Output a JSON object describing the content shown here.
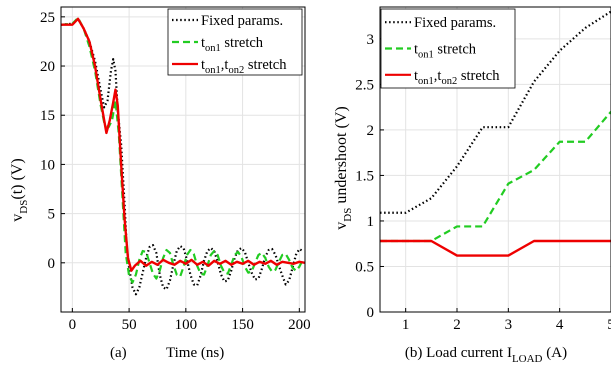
{
  "chart_data": [
    {
      "type": "line",
      "xlabel": "Time (ns)",
      "ylabel_main": "v",
      "ylabel_sub": "DS",
      "ylabel_rest": "(t) (V)",
      "xlim": [
        -10,
        205
      ],
      "ylim": [
        -5,
        26
      ],
      "xticks": [
        0,
        50,
        100,
        150,
        200
      ],
      "yticks": [
        0,
        5,
        10,
        15,
        20,
        25
      ],
      "grid": true,
      "legend_position": "top-right",
      "caption": "(a)",
      "series": [
        {
          "name": "Fixed params.",
          "color": "#000000",
          "dash": "dotted",
          "points": [
            [
              -10,
              24.2
            ],
            [
              0,
              24.3
            ],
            [
              5,
              24.8
            ],
            [
              10,
              23.8
            ],
            [
              15,
              22.5
            ],
            [
              20,
              20.5
            ],
            [
              25,
              17.5
            ],
            [
              28,
              15.8
            ],
            [
              31,
              16.5
            ],
            [
              34,
              19.5
            ],
            [
              36,
              20.7
            ],
            [
              38,
              19.5
            ],
            [
              40,
              15.5
            ],
            [
              43,
              12
            ],
            [
              46,
              6
            ],
            [
              48,
              1.5
            ],
            [
              50,
              -0.5
            ],
            [
              53,
              -2.5
            ],
            [
              56,
              -3.2
            ],
            [
              59,
              -2.5
            ],
            [
              62,
              -1
            ],
            [
              65,
              0.5
            ],
            [
              68,
              1.6
            ],
            [
              71,
              1.8
            ],
            [
              74,
              1
            ],
            [
              77,
              -1.2
            ],
            [
              80,
              -2.5
            ],
            [
              83,
              -2.7
            ],
            [
              86,
              -1.8
            ],
            [
              89,
              -0.2
            ],
            [
              92,
              1.2
            ],
            [
              95,
              1.7
            ],
            [
              98,
              1.5
            ],
            [
              101,
              0.3
            ],
            [
              104,
              -1.2
            ],
            [
              107,
              -2.2
            ],
            [
              110,
              -2.3
            ],
            [
              113,
              -1.3
            ],
            [
              116,
              0.2
            ],
            [
              119,
              1.2
            ],
            [
              122,
              1.5
            ],
            [
              125,
              1.2
            ],
            [
              128,
              0.1
            ],
            [
              131,
              -1.2
            ],
            [
              134,
              -1.9
            ],
            [
              137,
              -1.8
            ],
            [
              140,
              -0.8
            ],
            [
              143,
              0.5
            ],
            [
              146,
              1.3
            ],
            [
              149,
              1.5
            ],
            [
              152,
              1.1
            ],
            [
              155,
              0
            ],
            [
              158,
              -1
            ],
            [
              161,
              -1.7
            ],
            [
              164,
              -1.6
            ],
            [
              167,
              -0.6
            ],
            [
              170,
              0.6
            ],
            [
              173,
              1.3
            ],
            [
              176,
              1.4
            ],
            [
              179,
              0.8
            ],
            [
              182,
              -0.3
            ],
            [
              185,
              -1.3
            ],
            [
              188,
              -2.2
            ],
            [
              191,
              -1.8
            ],
            [
              194,
              -0.5
            ],
            [
              197,
              0.8
            ],
            [
              200,
              1.4
            ],
            [
              203,
              1.2
            ]
          ]
        },
        {
          "name": "ton1 stretch",
          "name_main": "t",
          "name_sub": "on1",
          "name_rest": " stretch",
          "color": "#22cc22",
          "dash": "dashed",
          "points": [
            [
              -10,
              24.2
            ],
            [
              0,
              24.3
            ],
            [
              5,
              24.9
            ],
            [
              10,
              23.8
            ],
            [
              15,
              22
            ],
            [
              20,
              19.5
            ],
            [
              25,
              16
            ],
            [
              28,
              14.3
            ],
            [
              32,
              13.8
            ],
            [
              35,
              14.5
            ],
            [
              38,
              16.5
            ],
            [
              41,
              13
            ],
            [
              44,
              7
            ],
            [
              47,
              1
            ],
            [
              50,
              -1.3
            ],
            [
              53,
              -2
            ],
            [
              56,
              -1.2
            ],
            [
              59,
              0.3
            ],
            [
              62,
              1.2
            ],
            [
              65,
              1.1
            ],
            [
              68,
              0
            ],
            [
              71,
              -1.1
            ],
            [
              74,
              -1.6
            ],
            [
              77,
              -0.8
            ],
            [
              80,
              0.5
            ],
            [
              83,
              1.3
            ],
            [
              86,
              1
            ],
            [
              89,
              -0.2
            ],
            [
              92,
              -1.2
            ],
            [
              95,
              -1.4
            ],
            [
              98,
              -0.4
            ],
            [
              101,
              0.8
            ],
            [
              104,
              1.3
            ],
            [
              107,
              0.9
            ],
            [
              110,
              -0.3
            ],
            [
              113,
              -1.1
            ],
            [
              116,
              -1.2
            ],
            [
              119,
              -0.3
            ],
            [
              122,
              0.8
            ],
            [
              125,
              1.2
            ],
            [
              128,
              0.8
            ],
            [
              131,
              -0.3
            ],
            [
              134,
              -1
            ],
            [
              137,
              -1.1
            ],
            [
              140,
              -0.2
            ],
            [
              143,
              0.8
            ],
            [
              146,
              1.1
            ],
            [
              149,
              0.6
            ],
            [
              152,
              -0.4
            ],
            [
              155,
              -1
            ],
            [
              158,
              -0.9
            ],
            [
              161,
              0
            ],
            [
              164,
              0.8
            ],
            [
              167,
              1
            ],
            [
              170,
              0.5
            ],
            [
              173,
              -0.4
            ],
            [
              176,
              -0.9
            ],
            [
              179,
              -0.7
            ],
            [
              182,
              0.1
            ],
            [
              185,
              0.8
            ],
            [
              188,
              0.9
            ],
            [
              191,
              0.3
            ],
            [
              194,
              -0.5
            ],
            [
              197,
              -0.8
            ],
            [
              200,
              -0.4
            ],
            [
              203,
              0.3
            ]
          ]
        },
        {
          "name": "ton1,ton2 stretch",
          "name_main": "t",
          "name_sub": "on1",
          "name_mid": ",t",
          "name_sub2": "on2",
          "name_rest": " stretch",
          "color": "#ee0000",
          "dash": "solid",
          "points": [
            [
              -10,
              24.2
            ],
            [
              0,
              24.2
            ],
            [
              5,
              24.8
            ],
            [
              10,
              23.8
            ],
            [
              15,
              22.5
            ],
            [
              20,
              20
            ],
            [
              25,
              16.5
            ],
            [
              30,
              13.2
            ],
            [
              33,
              14.5
            ],
            [
              36,
              16.3
            ],
            [
              38,
              17.6
            ],
            [
              40,
              16
            ],
            [
              43,
              10
            ],
            [
              46,
              4.5
            ],
            [
              49,
              0.5
            ],
            [
              52,
              -0.8
            ],
            [
              55,
              -0.3
            ],
            [
              60,
              0.2
            ],
            [
              65,
              -0.3
            ],
            [
              70,
              0.1
            ],
            [
              75,
              -0.2
            ],
            [
              80,
              0.3
            ],
            [
              85,
              0
            ],
            [
              90,
              -0.2
            ],
            [
              95,
              0.2
            ],
            [
              100,
              -0.1
            ],
            [
              105,
              0.3
            ],
            [
              110,
              -0.2
            ],
            [
              115,
              0.1
            ],
            [
              120,
              -0.3
            ],
            [
              125,
              0.2
            ],
            [
              130,
              -0.1
            ],
            [
              135,
              0.2
            ],
            [
              140,
              -0.2
            ],
            [
              145,
              0.1
            ],
            [
              150,
              -0.1
            ],
            [
              155,
              0.2
            ],
            [
              160,
              -0.2
            ],
            [
              165,
              0.1
            ],
            [
              170,
              -0.1
            ],
            [
              175,
              0.2
            ],
            [
              180,
              -0.2
            ],
            [
              185,
              0.1
            ],
            [
              190,
              0
            ],
            [
              195,
              -0.1
            ],
            [
              200,
              0.1
            ],
            [
              205,
              0
            ]
          ]
        }
      ]
    },
    {
      "type": "line",
      "xlabel": "(b) Load current I",
      "xlabel_sub": "LOAD",
      "xlabel_rest": " (A)",
      "ylabel_main": "v",
      "ylabel_sub": "DS",
      "ylabel_rest": " undershoot (V)",
      "xlim": [
        0.5,
        5
      ],
      "ylim": [
        0,
        3.35
      ],
      "xticks": [
        1,
        2,
        3,
        4,
        5
      ],
      "yticks": [
        0,
        0.5,
        1,
        1.5,
        2,
        2.5,
        3
      ],
      "ytick_labels": [
        "0",
        "0.5",
        "1",
        "1.5",
        "2",
        "2.5",
        "3"
      ],
      "grid": true,
      "legend_position": "top-left",
      "series": [
        {
          "name": "Fixed params.",
          "color": "#000000",
          "dash": "dotted",
          "points": [
            [
              0.5,
              1.09
            ],
            [
              1,
              1.09
            ],
            [
              1.5,
              1.25
            ],
            [
              2,
              1.6
            ],
            [
              2.5,
              2.03
            ],
            [
              3,
              2.03
            ],
            [
              3.5,
              2.53
            ],
            [
              4,
              2.87
            ],
            [
              4.5,
              3.12
            ],
            [
              5,
              3.3
            ]
          ]
        },
        {
          "name": "ton1 stretch",
          "name_main": "t",
          "name_sub": "on1",
          "name_rest": " stretch",
          "color": "#22cc22",
          "dash": "dashed",
          "points": [
            [
              0.5,
              0.78
            ],
            [
              1,
              0.78
            ],
            [
              1.5,
              0.78
            ],
            [
              2,
              0.94
            ],
            [
              2.5,
              0.94
            ],
            [
              3,
              1.41
            ],
            [
              3.5,
              1.56
            ],
            [
              4,
              1.87
            ],
            [
              4.5,
              1.87
            ],
            [
              5,
              2.2
            ]
          ]
        },
        {
          "name": "ton1,ton2 stretch",
          "name_main": "t",
          "name_sub": "on1",
          "name_mid": ",t",
          "name_sub2": "on2",
          "name_rest": " stretch",
          "color": "#ee0000",
          "dash": "solid",
          "points": [
            [
              0.5,
              0.78
            ],
            [
              1,
              0.78
            ],
            [
              1.5,
              0.78
            ],
            [
              2,
              0.62
            ],
            [
              2.5,
              0.62
            ],
            [
              3,
              0.62
            ],
            [
              3.5,
              0.78
            ],
            [
              4,
              0.78
            ],
            [
              4.5,
              0.78
            ],
            [
              5,
              0.78
            ]
          ]
        }
      ]
    }
  ]
}
